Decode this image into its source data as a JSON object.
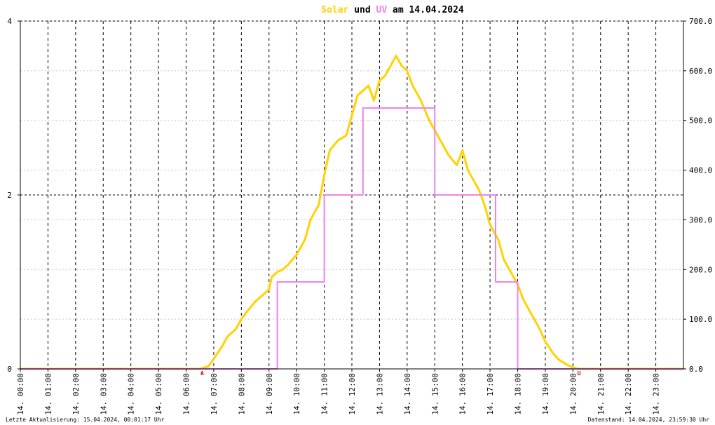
{
  "chart_data": {
    "type": "line",
    "title_parts": [
      {
        "text": "Solar",
        "color": "#ffd200"
      },
      {
        "text": " und ",
        "color": "#000000"
      },
      {
        "text": "UV",
        "color": "#ee82ee"
      },
      {
        "text": " am 14.04.2024",
        "color": "#000000"
      }
    ],
    "x_tick_labels": [
      "14. 00:00",
      "14. 01:00",
      "14. 02:00",
      "14. 03:00",
      "14. 04:00",
      "14. 05:00",
      "14. 06:00",
      "14. 07:00",
      "14. 08:00",
      "14. 09:00",
      "14. 10:00",
      "14. 11:00",
      "14. 12:00",
      "14. 13:00",
      "14. 14:00",
      "14. 15:00",
      "14. 16:00",
      "14. 17:00",
      "14. 18:00",
      "14. 19:00",
      "14. 20:00",
      "14. 21:00",
      "14. 22:00",
      "14. 23:00"
    ],
    "xlim": [
      0,
      24
    ],
    "y_left": {
      "ticks": [
        "0",
        "2",
        "4"
      ],
      "lim": [
        0,
        4
      ]
    },
    "y_right": {
      "ticks": [
        "0.0",
        "100.0",
        "200.0",
        "300.0",
        "400.0",
        "500.0",
        "600.0",
        "700.0"
      ],
      "lim": [
        0,
        700
      ]
    },
    "grid": true,
    "markers": [
      {
        "label": "A",
        "x": 6.58,
        "color": "#cc0000"
      },
      {
        "label": "U",
        "x": 20.22,
        "color": "#cc0000"
      }
    ],
    "series": [
      {
        "axis": "right",
        "color": "#ffd200",
        "x": [
          0,
          6.5,
          6.8,
          7.0,
          7.3,
          7.5,
          7.8,
          8.0,
          8.2,
          8.5,
          8.8,
          9.0,
          9.1,
          9.3,
          9.5,
          9.7,
          10.0,
          10.3,
          10.5,
          10.8,
          11.0,
          11.2,
          11.5,
          11.8,
          12.0,
          12.2,
          12.4,
          12.6,
          12.8,
          13.0,
          13.2,
          13.4,
          13.6,
          13.8,
          14.0,
          14.2,
          14.5,
          14.8,
          15.0,
          15.3,
          15.5,
          15.8,
          16.0,
          16.2,
          16.4,
          16.6,
          16.8,
          17.0,
          17.3,
          17.5,
          17.8,
          18.0,
          18.2,
          18.5,
          18.8,
          19.0,
          19.3,
          19.5,
          19.8,
          20.0,
          20.2,
          24
        ],
        "values": [
          0,
          0,
          5,
          20,
          45,
          65,
          80,
          100,
          115,
          135,
          150,
          160,
          185,
          195,
          200,
          210,
          230,
          260,
          300,
          330,
          390,
          440,
          460,
          470,
          510,
          550,
          560,
          570,
          540,
          580,
          590,
          610,
          630,
          610,
          600,
          570,
          540,
          500,
          480,
          450,
          430,
          410,
          440,
          400,
          380,
          360,
          330,
          290,
          260,
          220,
          190,
          170,
          140,
          110,
          80,
          55,
          30,
          18,
          8,
          3,
          0,
          0
        ]
      },
      {
        "axis": "left",
        "color": "#ee82ee",
        "shape": "step",
        "x": [
          0,
          9.05,
          9.3,
          10.8,
          11.0,
          12.2,
          12.4,
          14.8,
          15.0,
          17.0,
          17.2,
          17.8,
          18.0,
          24
        ],
        "values": [
          0,
          0,
          1,
          1,
          2,
          2,
          3,
          3,
          2,
          2,
          1,
          1,
          0,
          0
        ]
      }
    ]
  },
  "footer": {
    "left": "Letzte Aktualisierung: 15.04.2024, 00:01:17 Uhr",
    "right": "Datenstand: 14.04.2024, 23:59:30 Uhr"
  }
}
